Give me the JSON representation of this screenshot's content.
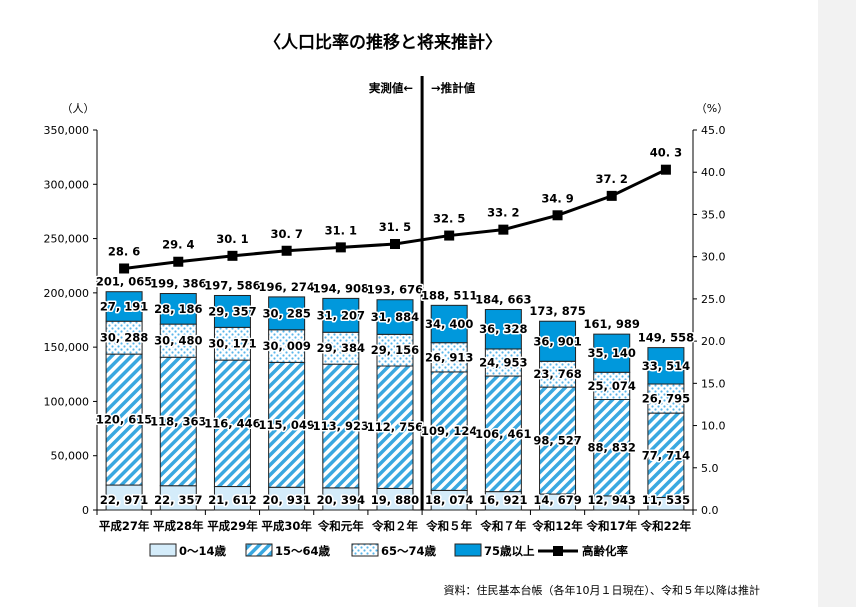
{
  "chart_data": {
    "type": "bar",
    "stacked": true,
    "title": "〈人口比率の推移と将来推計〉",
    "categories": [
      "平成27年",
      "平成28年",
      "平成29年",
      "平成30年",
      "令和元年",
      "令和２年",
      "令和５年",
      "令和７年",
      "令和12年",
      "令和17年",
      "令和22年"
    ],
    "series": [
      {
        "name": "0〜14歳",
        "values": [
          22971,
          22357,
          21612,
          20931,
          20394,
          19880,
          18074,
          16921,
          14679,
          12943,
          11535
        ],
        "color": "#d4ecfa"
      },
      {
        "name": "15〜64歳",
        "values": [
          120615,
          118363,
          116446,
          115049,
          113923,
          112756,
          109124,
          106461,
          98527,
          88832,
          77714
        ],
        "color": "#3aa8e0"
      },
      {
        "name": "65〜74歳",
        "values": [
          30288,
          30480,
          30171,
          30009,
          29384,
          29156,
          26913,
          24953,
          23768,
          25074,
          26795
        ],
        "color": "#7cc6ee"
      },
      {
        "name": "75歳以上",
        "values": [
          27191,
          28186,
          29357,
          30285,
          31207,
          31884,
          34400,
          36328,
          36901,
          35140,
          33514
        ],
        "color": "#0098dc"
      }
    ],
    "totals": [
      201065,
      199386,
      197586,
      196274,
      194908,
      193676,
      188511,
      184663,
      173875,
      161989,
      149558
    ],
    "line": {
      "name": "高齢化率",
      "values": [
        28.6,
        29.4,
        30.1,
        30.7,
        31.1,
        31.5,
        32.5,
        33.2,
        34.9,
        37.2,
        40.3
      ],
      "axis": "right"
    },
    "y_left": {
      "label": "（人）",
      "ylim": [
        0,
        350000
      ],
      "ticks": [
        "0",
        "50,000",
        "100,000",
        "150,000",
        "200,000",
        "250,000",
        "300,000",
        "350,000"
      ]
    },
    "y_right": {
      "label": "（%）",
      "ylim": [
        0,
        45
      ],
      "ticks": [
        "0.0",
        "5.0",
        "10.0",
        "15.0",
        "20.0",
        "25.0",
        "30.0",
        "35.0",
        "40.0",
        "45.0"
      ]
    },
    "divider": {
      "left_label": "実測値←",
      "right_label": "→推計値"
    },
    "legend_position": "bottom",
    "source": "資料：住民基本台帳（各年10月１日現在）、令和５年以降は推計"
  }
}
